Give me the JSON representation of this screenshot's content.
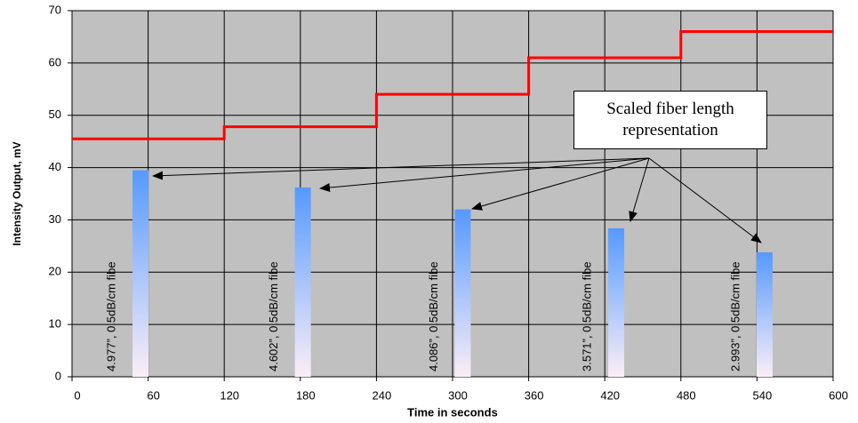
{
  "chart_data": {
    "type": "line",
    "y_label": "Intensity Output, mV",
    "x_label": "Time in seconds",
    "annotation": "Scaled fiber length representation",
    "xlim": [
      0,
      600
    ],
    "xticks": [
      0,
      60,
      120,
      180,
      240,
      300,
      360,
      420,
      480,
      540,
      600
    ],
    "ylim": [
      0,
      70
    ],
    "yticks": [
      0,
      10,
      20,
      30,
      40,
      50,
      60,
      70
    ],
    "grid": true,
    "series": [
      {
        "color": "#ff0000",
        "x": [
          0,
          120,
          120,
          240,
          240,
          360,
          360,
          480,
          480,
          600
        ],
        "values": [
          45.5,
          45.5,
          47.8,
          47.8,
          54,
          54,
          61,
          61,
          66,
          66
        ]
      }
    ],
    "bars": {
      "x": [
        54,
        182,
        308,
        429,
        546
      ],
      "values": [
        39.5,
        36.2,
        32,
        28.4,
        23.8
      ],
      "labels": [
        "4.977”, 0.5dB/cm fibe",
        "4.602”, 0.5dB/cm fibe",
        "4.086”, 0.5dB/cm fibe",
        "3.571”, 0.5dB/cm fibe",
        "2.993”, 0.5dB/cm fibe"
      ]
    }
  }
}
